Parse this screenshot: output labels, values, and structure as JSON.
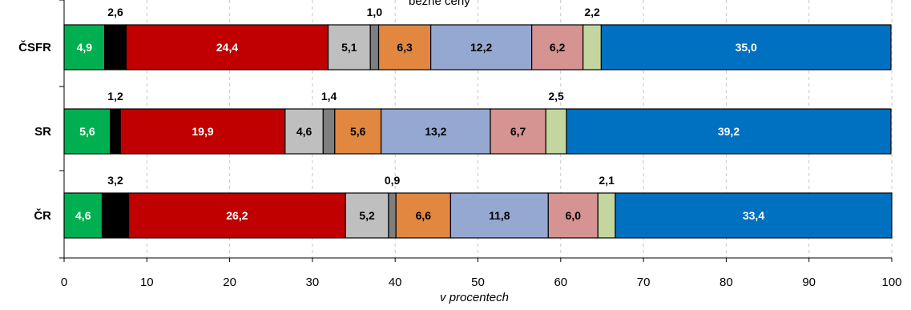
{
  "chart_data": {
    "type": "bar",
    "orientation": "horizontal",
    "stacked": true,
    "xlabel": "v procentech",
    "xlim": [
      0,
      100
    ],
    "xticks": [
      "0",
      "10",
      "20",
      "30",
      "40",
      "50",
      "60",
      "70",
      "80",
      "90",
      "100"
    ],
    "grid": "vertical dashed",
    "legend_fragment": "běžné ceny",
    "categories": [
      "ČSFR",
      "SR",
      "ČR"
    ],
    "segment_colors": [
      "#00b050",
      "#000000",
      "#c00000",
      "#bfbfbf",
      "#7f7f7f",
      "#e2873f",
      "#95a8d1",
      "#d59391",
      "#c4d6a0",
      "#0070c0"
    ],
    "rows": [
      {
        "label": "ČSFR",
        "values": [
          4.9,
          2.6,
          24.4,
          5.1,
          1.0,
          6.3,
          12.2,
          6.2,
          2.2,
          35.0
        ],
        "labels": [
          "4,9",
          "2,6",
          "24,4",
          "5,1",
          "1,0",
          "6,3",
          "12,2",
          "6,2",
          "2,2",
          "35,0"
        ]
      },
      {
        "label": "SR",
        "values": [
          5.6,
          1.2,
          19.9,
          4.6,
          1.4,
          5.6,
          13.2,
          6.7,
          2.5,
          39.2
        ],
        "labels": [
          "5,6",
          "1,2",
          "19,9",
          "4,6",
          "1,4",
          "5,6",
          "13,2",
          "6,7",
          "2,5",
          "39,2"
        ]
      },
      {
        "label": "ČR",
        "values": [
          4.6,
          3.2,
          26.2,
          5.2,
          0.9,
          6.6,
          11.8,
          6.0,
          2.1,
          33.4
        ],
        "labels": [
          "4,6",
          "3,2",
          "26,2",
          "5,2",
          "0,9",
          "6,6",
          "11,8",
          "6,0",
          "2,1",
          "33,4"
        ]
      }
    ]
  }
}
